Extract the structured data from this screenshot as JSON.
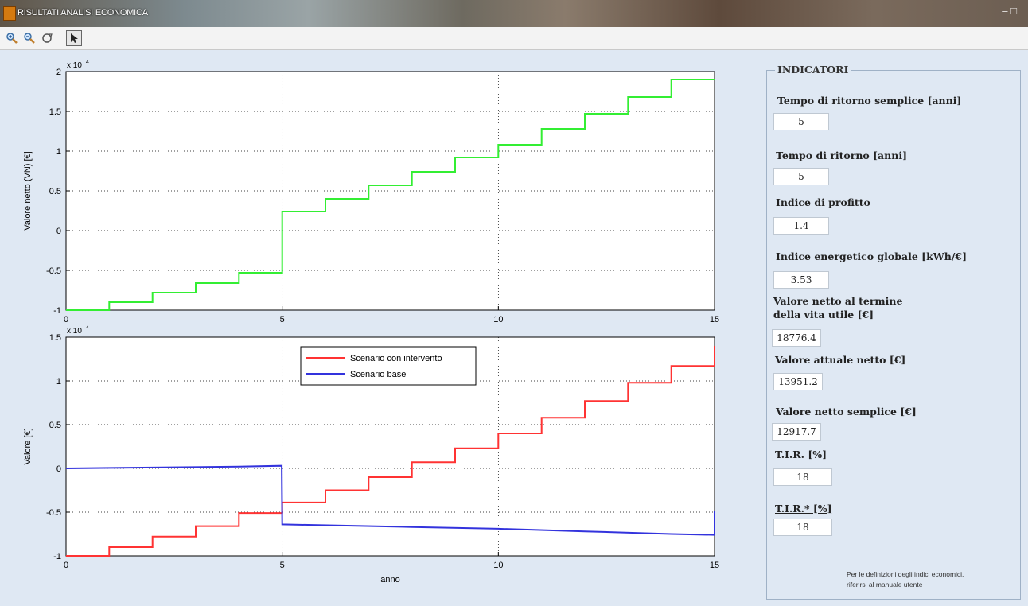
{
  "window": {
    "title": "RISULTATI ANALISI ECONOMICA",
    "controls": "– □"
  },
  "toolbar": {
    "buttons": [
      "zoom-in",
      "zoom-out",
      "rotate",
      "pointer"
    ]
  },
  "indicators": {
    "title": "INDICATORI",
    "items": [
      {
        "label": "Tempo di ritorno semplice [anni]",
        "value": "5"
      },
      {
        "label": "Tempo di ritorno [anni]",
        "value": "5"
      },
      {
        "label": "Indice di profitto",
        "value": "1.4"
      },
      {
        "label": "Indice energetico globale [kWh/€]",
        "value": "3.53"
      },
      {
        "label": "Valore netto al termine\ndella vita utile [€]",
        "value": "18776.4"
      },
      {
        "label": "Valore attuale netto [€]",
        "value": "13951.2"
      },
      {
        "label": "Valore netto semplice [€]",
        "value": "12917.7"
      },
      {
        "label": "T.I.R. [%]",
        "value": "18"
      },
      {
        "label": "T.I.R.* [%]",
        "value": "18"
      }
    ],
    "note": "Per le definizioni degli indici economici,\nriferirsi al manuale utente"
  },
  "chart_data": [
    {
      "type": "line",
      "ylabel": "Valore netto (VN) [€]",
      "xlabel": "",
      "exponent_label": "x 10",
      "exponent_power": "4",
      "xlim": [
        0,
        15
      ],
      "ylim": [
        -10000,
        20000
      ],
      "xticks": [
        0,
        5,
        10,
        15
      ],
      "yticks": [
        -10000,
        -5000,
        0,
        5000,
        10000,
        15000,
        20000
      ],
      "ytick_labels": [
        "-1",
        "-0.5",
        "0",
        "0.5",
        "1",
        "1.5",
        "2"
      ],
      "grid": true,
      "series": [
        {
          "color": "#33ee33",
          "step": true,
          "x": [
            0,
            1,
            2,
            3,
            4,
            5,
            6,
            7,
            8,
            9,
            10,
            11,
            12,
            13,
            14,
            15
          ],
          "y": [
            -10000,
            -9000,
            -7800,
            -6600,
            -5300,
            2400,
            4000,
            5700,
            7400,
            9200,
            10800,
            12800,
            14700,
            16800,
            19000,
            19000
          ]
        }
      ]
    },
    {
      "type": "line",
      "ylabel": "Valore [€]",
      "xlabel": "anno",
      "exponent_label": "x 10",
      "exponent_power": "4",
      "xlim": [
        0,
        15
      ],
      "ylim": [
        -10000,
        15000
      ],
      "xticks": [
        0,
        5,
        10,
        15
      ],
      "yticks": [
        -10000,
        -5000,
        0,
        5000,
        10000,
        15000
      ],
      "ytick_labels": [
        "-1",
        "-0.5",
        "0",
        "0.5",
        "1",
        "1.5"
      ],
      "grid": true,
      "legend_position": "top-center",
      "series": [
        {
          "name": "Scenario con intervento",
          "color": "#ff3333",
          "step": true,
          "x": [
            0,
            1,
            2,
            3,
            4,
            5,
            6,
            7,
            8,
            9,
            10,
            11,
            12,
            13,
            14,
            15
          ],
          "y": [
            -10000,
            -9000,
            -7800,
            -6600,
            -5100,
            -3900,
            -2500,
            -1000,
            700,
            2300,
            4000,
            5800,
            7700,
            9800,
            11700,
            14000
          ]
        },
        {
          "name": "Scenario base",
          "color": "#3333dd",
          "step": false,
          "x": [
            0,
            2,
            4,
            4.99,
            5,
            8,
            10,
            12,
            14,
            15,
            15
          ],
          "y": [
            0,
            100,
            200,
            300,
            -6400,
            -6700,
            -6900,
            -7200,
            -7500,
            -7600,
            -4900
          ]
        }
      ]
    }
  ]
}
